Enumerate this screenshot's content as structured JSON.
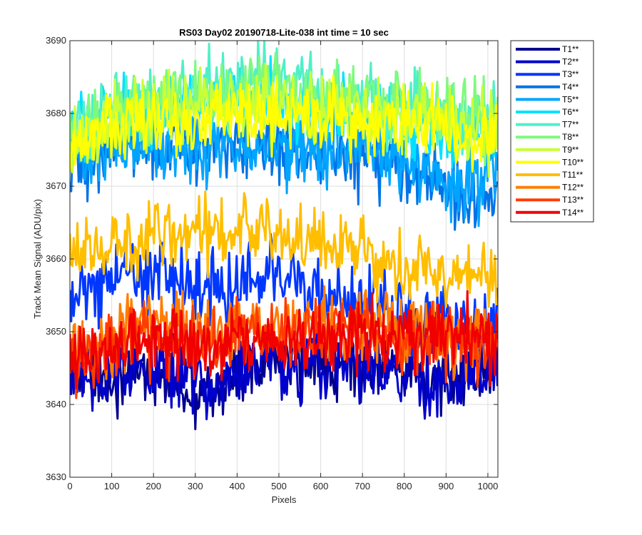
{
  "chart_data": {
    "type": "line",
    "title": "RS03 Day02 20190718-Lite-038 int time = 10 sec",
    "xlabel": "Pixels",
    "ylabel": "Track Mean Signal (ADU/pix)",
    "xlim": [
      0,
      1024
    ],
    "ylim": [
      3630,
      3690
    ],
    "xticks": [
      0,
      100,
      200,
      300,
      400,
      500,
      600,
      700,
      800,
      900,
      1000
    ],
    "yticks": [
      3630,
      3640,
      3650,
      3660,
      3670,
      3680,
      3690
    ],
    "grid": true,
    "legend_position": "outside-right-top",
    "x_samples": [
      0,
      40,
      80,
      120,
      160,
      200,
      240,
      280,
      320,
      360,
      400,
      440,
      480,
      520,
      560,
      600,
      640,
      680,
      720,
      760,
      800,
      840,
      880,
      920,
      960,
      1000,
      1024
    ],
    "noise_amplitude": 4,
    "series": [
      {
        "name": "T1**",
        "color": "#00008f",
        "values": [
          3646,
          3644,
          3643,
          3644,
          3645,
          3644,
          3643,
          3642,
          3641,
          3643,
          3644,
          3645,
          3646,
          3646,
          3645,
          3646,
          3646,
          3646,
          3645,
          3645,
          3645,
          3644,
          3644,
          3644,
          3645,
          3645,
          3645
        ]
      },
      {
        "name": "T2**",
        "color": "#0000cc",
        "values": [
          3646,
          3644,
          3644,
          3645,
          3645,
          3645,
          3644,
          3643,
          3642,
          3643,
          3644,
          3645,
          3646,
          3645,
          3645,
          3646,
          3646,
          3646,
          3645,
          3645,
          3644,
          3644,
          3643,
          3644,
          3645,
          3645,
          3646
        ]
      },
      {
        "name": "T3**",
        "color": "#0037ff",
        "values": [
          3656,
          3656,
          3657,
          3658,
          3658,
          3658,
          3658,
          3657,
          3656,
          3656,
          3657,
          3658,
          3658,
          3657,
          3656,
          3656,
          3655,
          3655,
          3654,
          3653,
          3652,
          3652,
          3651,
          3650,
          3650,
          3650,
          3650
        ]
      },
      {
        "name": "T4**",
        "color": "#0073e6",
        "values": [
          3674,
          3674,
          3675,
          3675,
          3676,
          3675,
          3675,
          3675,
          3674,
          3675,
          3675,
          3675,
          3675,
          3675,
          3675,
          3674,
          3674,
          3674,
          3674,
          3673,
          3673,
          3672,
          3670,
          3669,
          3668,
          3669,
          3670
        ]
      },
      {
        "name": "T5**",
        "color": "#00a5ff",
        "values": [
          3675,
          3675,
          3676,
          3676,
          3676,
          3675,
          3675,
          3675,
          3675,
          3676,
          3675,
          3675,
          3675,
          3675,
          3676,
          3675,
          3675,
          3675,
          3675,
          3674,
          3674,
          3674,
          3672,
          3671,
          3671,
          3672,
          3672
        ]
      },
      {
        "name": "T6**",
        "color": "#00e1ff",
        "values": [
          3677,
          3678,
          3679,
          3680,
          3680,
          3680,
          3681,
          3681,
          3681,
          3682,
          3682,
          3682,
          3682,
          3681,
          3681,
          3681,
          3681,
          3680,
          3680,
          3679,
          3679,
          3678,
          3678,
          3677,
          3677,
          3677,
          3677
        ]
      },
      {
        "name": "T7**",
        "color": "#4ff0c8",
        "values": [
          3678,
          3679,
          3681,
          3682,
          3682,
          3682,
          3683,
          3683,
          3683,
          3684,
          3684,
          3684,
          3684,
          3683,
          3683,
          3683,
          3682,
          3682,
          3682,
          3681,
          3681,
          3681,
          3680,
          3680,
          3680,
          3680,
          3680
        ]
      },
      {
        "name": "T8**",
        "color": "#7dfa7d",
        "values": [
          3677,
          3678,
          3679,
          3680,
          3681,
          3681,
          3682,
          3682,
          3682,
          3683,
          3683,
          3683,
          3683,
          3683,
          3682,
          3682,
          3682,
          3682,
          3681,
          3681,
          3681,
          3680,
          3680,
          3680,
          3679,
          3679,
          3679
        ]
      },
      {
        "name": "T9**",
        "color": "#c8ff37",
        "values": [
          3676,
          3677,
          3678,
          3679,
          3680,
          3680,
          3681,
          3681,
          3681,
          3682,
          3682,
          3682,
          3682,
          3682,
          3681,
          3681,
          3681,
          3681,
          3680,
          3680,
          3680,
          3679,
          3679,
          3679,
          3678,
          3678,
          3678
        ]
      },
      {
        "name": "T10**",
        "color": "#ffff00",
        "values": [
          3675,
          3676,
          3677,
          3678,
          3679,
          3679,
          3679,
          3679,
          3679,
          3680,
          3680,
          3680,
          3680,
          3680,
          3680,
          3679,
          3679,
          3679,
          3679,
          3678,
          3678,
          3678,
          3678,
          3677,
          3677,
          3677,
          3677
        ]
      },
      {
        "name": "T11**",
        "color": "#ffbe00",
        "values": [
          3660,
          3661,
          3661,
          3662,
          3662,
          3663,
          3663,
          3663,
          3663,
          3664,
          3664,
          3664,
          3664,
          3663,
          3662,
          3662,
          3661,
          3661,
          3660,
          3660,
          3659,
          3659,
          3658,
          3657,
          3657,
          3657,
          3657
        ]
      },
      {
        "name": "T12**",
        "color": "#ff7d00",
        "values": [
          3648,
          3648,
          3649,
          3650,
          3651,
          3651,
          3651,
          3651,
          3651,
          3651,
          3651,
          3651,
          3651,
          3651,
          3651,
          3651,
          3651,
          3651,
          3651,
          3651,
          3650,
          3650,
          3650,
          3649,
          3649,
          3649,
          3649
        ]
      },
      {
        "name": "T13**",
        "color": "#ff3c00",
        "values": [
          3647,
          3647,
          3648,
          3648,
          3649,
          3649,
          3649,
          3649,
          3649,
          3649,
          3649,
          3649,
          3649,
          3649,
          3649,
          3650,
          3650,
          3650,
          3650,
          3650,
          3649,
          3649,
          3649,
          3648,
          3648,
          3648,
          3648
        ]
      },
      {
        "name": "T14**",
        "color": "#f00000",
        "values": [
          3646,
          3646,
          3647,
          3648,
          3648,
          3648,
          3648,
          3648,
          3648,
          3648,
          3648,
          3648,
          3649,
          3649,
          3649,
          3649,
          3650,
          3650,
          3650,
          3650,
          3649,
          3649,
          3649,
          3649,
          3649,
          3649,
          3649
        ]
      }
    ]
  }
}
